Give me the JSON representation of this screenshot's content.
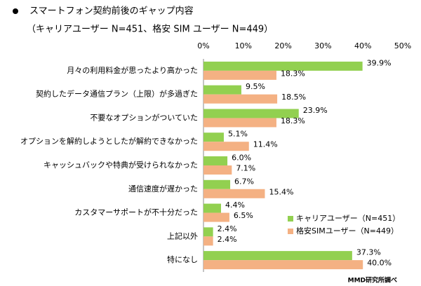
{
  "chart_data": {
    "type": "hbar",
    "title": "スマートフォン契約前後のギャップ内容",
    "subtitle": "（キャリアユーザー N=451、格安 SIM ユーザー N=449）",
    "source": "MMD研究所調べ",
    "categories": [
      "月々の利用料金が思ったより高かった",
      "契約したデータ通信プラン（上限）が多過ぎた",
      "不要なオプションがついていた",
      "オプションを解約しようとしたが解約できなかった",
      "キャッシュバックや特典が受けられなかった",
      "通信速度が遅かった",
      "カスタマーサポートが不十分だった",
      "上記以外",
      "特になし"
    ],
    "series": [
      {
        "name": "キャリアユーザー（N=451）",
        "color": "#92d050",
        "values": [
          39.9,
          9.5,
          23.9,
          5.1,
          6.0,
          6.7,
          4.4,
          2.4,
          37.3
        ],
        "value_labels": [
          "39.9%",
          "9.5%",
          "23.9%",
          "5.1%",
          "6.0%",
          "6.7%",
          "4.4%",
          "2.4%",
          "37.3%"
        ]
      },
      {
        "name": "格安SIMユーザー（N=449）",
        "color": "#f4b183",
        "values": [
          18.3,
          18.5,
          18.3,
          11.4,
          7.1,
          15.4,
          6.5,
          2.4,
          40.0
        ],
        "value_labels": [
          "18.3%",
          "18.5%",
          "18.3%",
          "11.4%",
          "7.1%",
          "15.4%",
          "6.5%",
          "2.4%",
          "40.0%"
        ]
      }
    ],
    "xlim": [
      0,
      50
    ],
    "xticks": [
      {
        "value": 0,
        "label": "0%"
      },
      {
        "value": 10,
        "label": "10%"
      },
      {
        "value": 20,
        "label": "20%"
      },
      {
        "value": 30,
        "label": "30%"
      },
      {
        "value": 40,
        "label": "40%"
      },
      {
        "value": 50,
        "label": "50%"
      }
    ],
    "legend": "bottom-right"
  }
}
